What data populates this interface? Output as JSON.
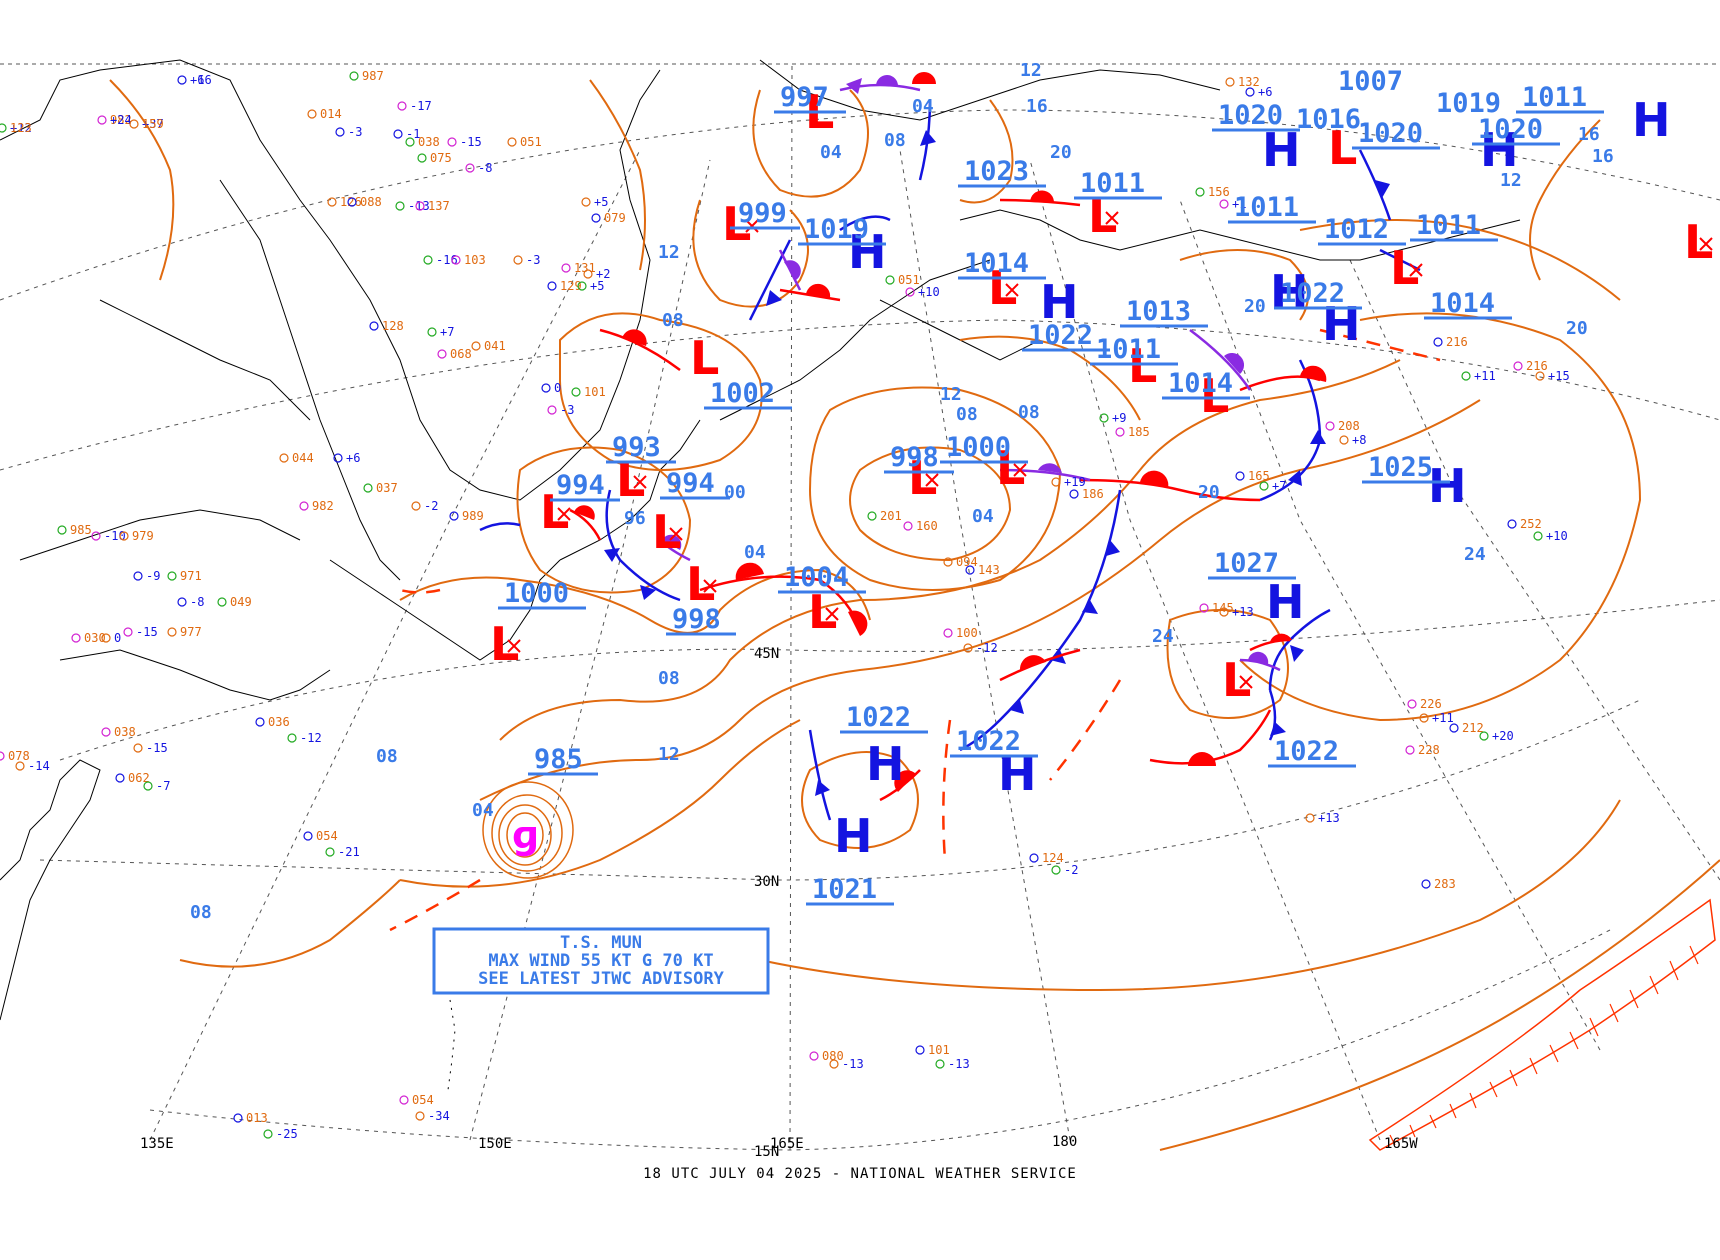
{
  "footer": "18 UTC JULY 04 2025 - NATIONAL WEATHER SERVICE",
  "advisory": {
    "line1": "T.S. MUN",
    "line2": "MAX WIND 55 KT G 70 KT",
    "line3": "SEE LATEST JTWC ADVISORY"
  },
  "colors": {
    "isobar": "#e06a10",
    "pressure_label": "#3a7be8",
    "high": "#1414e0",
    "low": "#ff0000",
    "warm_front": "#ff0000",
    "cold_front": "#1414e0",
    "occluded_front": "#8a2be2",
    "coast": "#000000",
    "grid": "#555555",
    "storm": "#ff00ff"
  },
  "grid_labels": {
    "lat_45": "45N",
    "lat_30": "30N",
    "lat_15": "15N",
    "lon_135e": "135E",
    "lon_150e": "150E",
    "lon_165e": "165E",
    "lon_180": "180",
    "lon_165w": "165W"
  },
  "pressure_labels": {
    "p997": "997",
    "p999": "999",
    "p1019a": "1019",
    "p1023": "1023",
    "p1011a": "1011",
    "p1007": "1007",
    "p1020a": "1020",
    "p1016": "1016",
    "p1020b": "1020",
    "p1019b": "1019",
    "p1020c": "1020",
    "p1011b": "1011",
    "p1011c": "1011",
    "p1012": "1012",
    "p1011d": "1011",
    "p1014a": "1014",
    "p1022a": "1022",
    "p1013": "1013",
    "p1011e": "1011",
    "p1014b": "1014",
    "p1022b": "1022",
    "p1014c": "1014",
    "p1002": "1002",
    "p993": "993",
    "p994a": "994",
    "p994b": "994",
    "p998a": "998",
    "p1000a": "1000",
    "p1025": "1025",
    "p1004": "1004",
    "p998b": "998",
    "p1000b": "1000",
    "p1027": "1027",
    "p985": "985",
    "p1022c": "1022",
    "p1022d": "1022",
    "p1022e": "1022",
    "p1021": "1021"
  },
  "contour_labels": {
    "c04a": "04",
    "c08a": "08",
    "c12a": "12",
    "c08b": "08",
    "c04b": "04",
    "c16a": "16",
    "c20a": "20",
    "c12b": "12",
    "c16b": "16",
    "c16c": "16",
    "c12c": "12",
    "c08c": "08",
    "c12d": "12",
    "c08d": "08",
    "c08e": "08",
    "c20b": "20",
    "c20c": "20",
    "c20d": "20",
    "c24a": "24",
    "c24b": "24",
    "c04c": "04",
    "c04d": "04",
    "c96": "96",
    "c00": "00",
    "c08f": "08",
    "c12e": "12",
    "c08g": "08",
    "c04e": "04",
    "c08h": "08"
  },
  "stations": [
    {
      "t": "+12",
      "c": "#1414e0"
    },
    {
      "t": "982",
      "c": "#e06a10"
    },
    {
      "t": "+37",
      "c": "#1414e0"
    },
    {
      "t": "-6",
      "c": "#1414e0"
    },
    {
      "t": "987",
      "c": "#e06a10"
    },
    {
      "t": "-17",
      "c": "#1414e0"
    },
    {
      "t": "014",
      "c": "#e06a10"
    },
    {
      "t": "-3",
      "c": "#1414e0"
    },
    {
      "t": "038",
      "c": "#e06a10"
    },
    {
      "t": "-15",
      "c": "#1414e0"
    },
    {
      "t": "051",
      "c": "#e06a10"
    },
    {
      "t": "-1",
      "c": "#1414e0"
    },
    {
      "t": "075",
      "c": "#e06a10"
    },
    {
      "t": "-8",
      "c": "#1414e0"
    },
    {
      "t": "126",
      "c": "#e06a10"
    },
    {
      "t": "088",
      "c": "#e06a10"
    },
    {
      "t": "-13",
      "c": "#1414e0"
    },
    {
      "t": "137",
      "c": "#e06a10"
    },
    {
      "t": "+5",
      "c": "#1414e0"
    },
    {
      "t": "079",
      "c": "#e06a10"
    },
    {
      "t": "-16",
      "c": "#1414e0"
    },
    {
      "t": "103",
      "c": "#e06a10"
    },
    {
      "t": "-3",
      "c": "#1414e0"
    },
    {
      "t": "129",
      "c": "#e06a10"
    },
    {
      "t": "+5",
      "c": "#1414e0"
    },
    {
      "t": "131",
      "c": "#e06a10"
    },
    {
      "t": "+2",
      "c": "#1414e0"
    },
    {
      "t": "128",
      "c": "#e06a10"
    },
    {
      "t": "+7",
      "c": "#1414e0"
    },
    {
      "t": "068",
      "c": "#e06a10"
    },
    {
      "t": "041",
      "c": "#e06a10"
    },
    {
      "t": "0",
      "c": "#1414e0"
    },
    {
      "t": "101",
      "c": "#e06a10"
    },
    {
      "t": "-3",
      "c": "#1414e0"
    },
    {
      "t": "044",
      "c": "#e06a10"
    },
    {
      "t": "+6",
      "c": "#1414e0"
    },
    {
      "t": "037",
      "c": "#e06a10"
    },
    {
      "t": "982",
      "c": "#e06a10"
    },
    {
      "t": "-2",
      "c": "#1414e0"
    },
    {
      "t": "989",
      "c": "#e06a10"
    },
    {
      "t": "985",
      "c": "#e06a10"
    },
    {
      "t": "-10",
      "c": "#1414e0"
    },
    {
      "t": "979",
      "c": "#e06a10"
    },
    {
      "t": "-9",
      "c": "#1414e0"
    },
    {
      "t": "971",
      "c": "#e06a10"
    },
    {
      "t": "-15",
      "c": "#1414e0"
    },
    {
      "t": "977",
      "c": "#e06a10"
    },
    {
      "t": "-8",
      "c": "#1414e0"
    },
    {
      "t": "049",
      "c": "#e06a10"
    },
    {
      "t": "030",
      "c": "#e06a10"
    },
    {
      "t": "0",
      "c": "#1414e0"
    },
    {
      "t": "036",
      "c": "#e06a10"
    },
    {
      "t": "-12",
      "c": "#1414e0"
    },
    {
      "t": "038",
      "c": "#e06a10"
    },
    {
      "t": "-15",
      "c": "#1414e0"
    },
    {
      "t": "062",
      "c": "#e06a10"
    },
    {
      "t": "-7",
      "c": "#1414e0"
    },
    {
      "t": "078",
      "c": "#e06a10"
    },
    {
      "t": "-14",
      "c": "#1414e0"
    },
    {
      "t": "054",
      "c": "#e06a10"
    },
    {
      "t": "-21",
      "c": "#1414e0"
    },
    {
      "t": "054",
      "c": "#e06a10"
    },
    {
      "t": "-34",
      "c": "#1414e0"
    },
    {
      "t": "013",
      "c": "#e06a10"
    },
    {
      "t": "-25",
      "c": "#1414e0"
    },
    {
      "t": "080",
      "c": "#e06a10"
    },
    {
      "t": "-13",
      "c": "#1414e0"
    },
    {
      "t": "101",
      "c": "#e06a10"
    },
    {
      "t": "-13",
      "c": "#1414e0"
    },
    {
      "t": "100",
      "c": "#e06a10"
    },
    {
      "t": "-12",
      "c": "#1414e0"
    },
    {
      "t": "124",
      "c": "#e06a10"
    },
    {
      "t": "-2",
      "c": "#1414e0"
    },
    {
      "t": "145",
      "c": "#e06a10"
    },
    {
      "t": "+13",
      "c": "#1414e0"
    },
    {
      "t": "165",
      "c": "#e06a10"
    },
    {
      "t": "+7",
      "c": "#1414e0"
    },
    {
      "t": "208",
      "c": "#e06a10"
    },
    {
      "t": "+8",
      "c": "#1414e0"
    },
    {
      "t": "252",
      "c": "#e06a10"
    },
    {
      "t": "+10",
      "c": "#1414e0"
    },
    {
      "t": "216",
      "c": "#e06a10"
    },
    {
      "t": "+15",
      "c": "#1414e0"
    },
    {
      "t": "216",
      "c": "#e06a10"
    },
    {
      "t": "+11",
      "c": "#1414e0"
    },
    {
      "t": "226",
      "c": "#e06a10"
    },
    {
      "t": "+11",
      "c": "#1414e0"
    },
    {
      "t": "212",
      "c": "#e06a10"
    },
    {
      "t": "+20",
      "c": "#1414e0"
    },
    {
      "t": "228",
      "c": "#e06a10"
    },
    {
      "t": "+13",
      "c": "#1414e0"
    },
    {
      "t": "283",
      "c": "#e06a10"
    },
    {
      "t": "+9",
      "c": "#1414e0"
    },
    {
      "t": "185",
      "c": "#e06a10"
    },
    {
      "t": "+19",
      "c": "#1414e0"
    },
    {
      "t": "186",
      "c": "#e06a10"
    },
    {
      "t": "201",
      "c": "#e06a10"
    },
    {
      "t": "160",
      "c": "#e06a10"
    },
    {
      "t": "094",
      "c": "#e06a10"
    },
    {
      "t": "143",
      "c": "#e06a10"
    },
    {
      "t": "051",
      "c": "#e06a10"
    },
    {
      "t": "+10",
      "c": "#1414e0"
    },
    {
      "t": "132",
      "c": "#e06a10"
    },
    {
      "t": "+6",
      "c": "#1414e0"
    },
    {
      "t": "156",
      "c": "#e06a10"
    },
    {
      "t": "+1",
      "c": "#1414e0"
    },
    {
      "t": "123",
      "c": "#e06a10"
    },
    {
      "t": "+24",
      "c": "#1414e0"
    },
    {
      "t": "159",
      "c": "#e06a10"
    },
    {
      "t": "+16",
      "c": "#1414e0"
    }
  ]
}
